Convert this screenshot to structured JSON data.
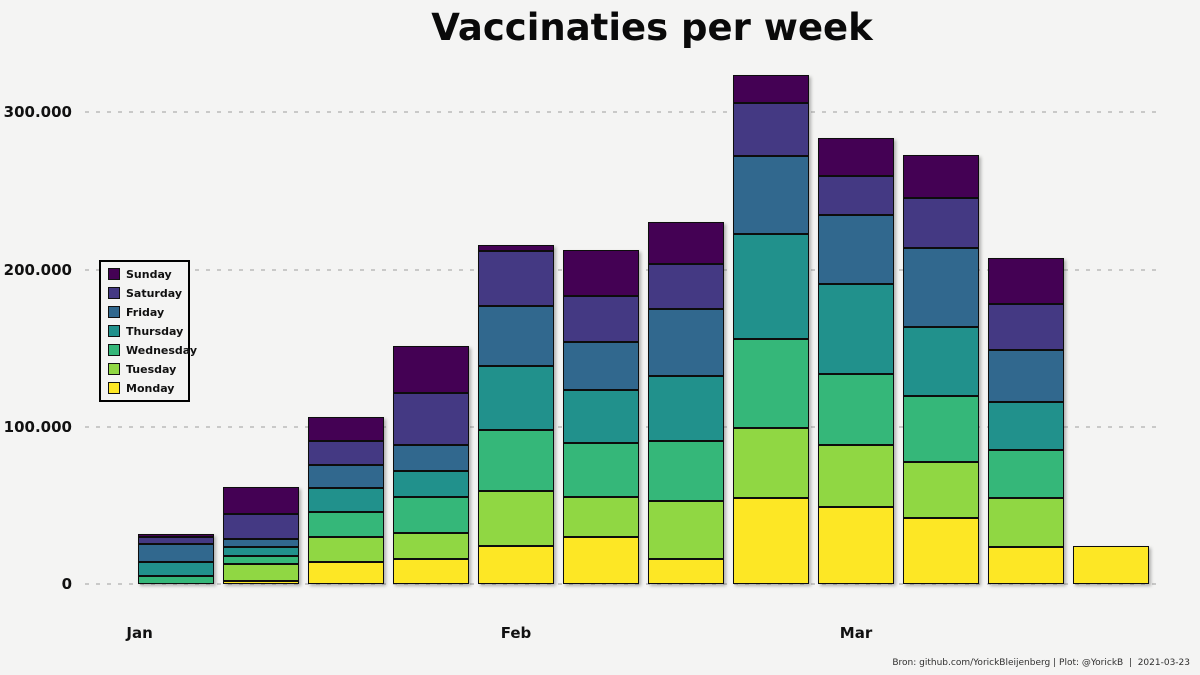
{
  "page": {
    "background": "#f4f4f3"
  },
  "header": {
    "title": "Vaccinaties per week"
  },
  "footer": {
    "credit": "Bron: github.com/YorickBleijenberg | Plot: @YorickB  |  2021-03-23"
  },
  "chart_data": {
    "type": "bar",
    "stacked": true,
    "title": "Vaccinaties per week",
    "xlabel": "",
    "ylabel": "",
    "x_unit": "week (12 weekly bars, Jan-Mar 2021)",
    "ylim": [
      0,
      330000
    ],
    "grid": "dashed horizontal gridlines",
    "legend_position": "left-middle, reverse stack order (Sunday top)",
    "y_ticks": [
      {
        "label": "0",
        "value": 0
      },
      {
        "label": "100.000",
        "value": 100000
      },
      {
        "label": "200.000",
        "value": 200000
      },
      {
        "label": "300.000",
        "value": 300000
      }
    ],
    "month_ticks": [
      {
        "label": "Jan",
        "week_index": 0,
        "offset_days": 3
      },
      {
        "label": "Feb",
        "week_index": 4,
        "offset_days": 0
      },
      {
        "label": "Mar",
        "week_index": 8,
        "offset_days": 0
      }
    ],
    "weeks": 12,
    "series": [
      {
        "name": "Monday",
        "color": "#fde725",
        "values": [
          0,
          2200,
          14200,
          15700,
          24400,
          30200,
          15900,
          54500,
          48900,
          41800,
          23400,
          24000
        ]
      },
      {
        "name": "Tuesday",
        "color": "#90d743",
        "values": [
          0,
          10600,
          15900,
          16600,
          34700,
          25000,
          36800,
          44600,
          39700,
          35700,
          31400,
          0
        ]
      },
      {
        "name": "Wednesday",
        "color": "#35b779",
        "values": [
          4900,
          4900,
          15900,
          22900,
          38900,
          34400,
          38200,
          56900,
          45200,
          42400,
          30200,
          0
        ]
      },
      {
        "name": "Thursday",
        "color": "#21918c",
        "values": [
          9100,
          5700,
          14900,
          17000,
          40800,
          34000,
          41400,
          66900,
          57100,
          43900,
          30800,
          0
        ]
      },
      {
        "name": "Friday",
        "color": "#31688e",
        "values": [
          11500,
          5300,
          14900,
          16400,
          37800,
          30300,
          42400,
          49200,
          43700,
          49900,
          33300,
          0
        ]
      },
      {
        "name": "Saturday",
        "color": "#443983",
        "values": [
          4300,
          15900,
          14900,
          32900,
          35500,
          29100,
          28700,
          33600,
          24800,
          31800,
          29300,
          0
        ]
      },
      {
        "name": "Sunday",
        "color": "#440154",
        "values": [
          1700,
          17000,
          15500,
          30100,
          3600,
          29300,
          27000,
          18000,
          24500,
          27600,
          28700,
          0
        ]
      }
    ],
    "week_totals": [
      31500,
      61600,
      106200,
      151600,
      215700,
      212300,
      230400,
      323700,
      283900,
      273100,
      207100,
      24000
    ]
  }
}
